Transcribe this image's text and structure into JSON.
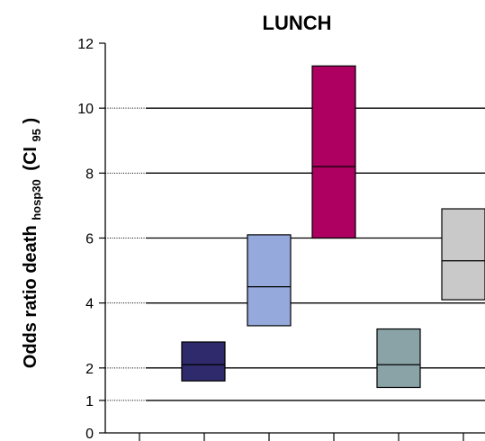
{
  "chart_data": {
    "type": "box",
    "title": "LUNCH",
    "ylabel": {
      "main": "Odds ratio death",
      "sub1": "hosp30",
      "paren_open": "(CI",
      "sub2": "95",
      "paren_close": ")"
    },
    "ylim": [
      0,
      12
    ],
    "yticks": [
      0,
      1,
      2,
      4,
      6,
      8,
      10,
      12
    ],
    "gridlines": [
      1,
      2,
      4,
      6,
      8,
      10
    ],
    "gridline_style": "dotted",
    "boxes": [
      {
        "low": 1.6,
        "median": 2.1,
        "high": 2.8,
        "color": "#2e2a6b"
      },
      {
        "low": 3.3,
        "median": 4.5,
        "high": 6.1,
        "color": "#95a9dc"
      },
      {
        "low": 6.0,
        "median": 8.2,
        "high": 11.3,
        "color": "#ad0060"
      },
      {
        "low": 1.4,
        "median": 2.1,
        "high": 3.2,
        "color": "#8aa3a7"
      },
      {
        "low": 4.1,
        "median": 5.3,
        "high": 6.9,
        "color": "#c9c9c9"
      }
    ]
  }
}
